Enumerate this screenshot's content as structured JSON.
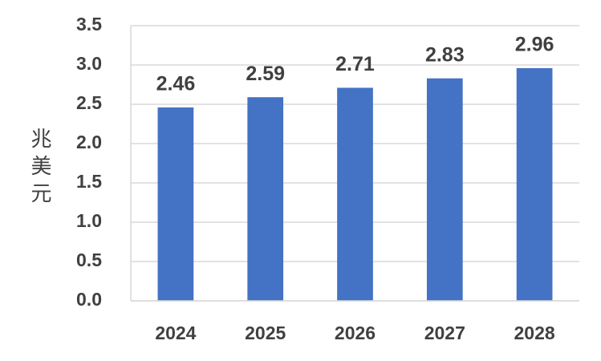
{
  "chart_data": {
    "type": "bar",
    "y_label": "兆美元",
    "categories": [
      "2024",
      "2025",
      "2026",
      "2027",
      "2028"
    ],
    "values": [
      2.46,
      2.59,
      2.71,
      2.83,
      2.96
    ],
    "color": "#4472c4",
    "ylim": [
      0,
      3.5
    ],
    "yticks": [
      {
        "value": 0,
        "label": "0.0"
      },
      0.5,
      {
        "value": 1,
        "label": "1.0"
      },
      1.5,
      {
        "value": 2,
        "label": "2.0"
      },
      2.5,
      {
        "value": 3,
        "label": "3.0"
      },
      3.5
    ],
    "grid": true
  }
}
